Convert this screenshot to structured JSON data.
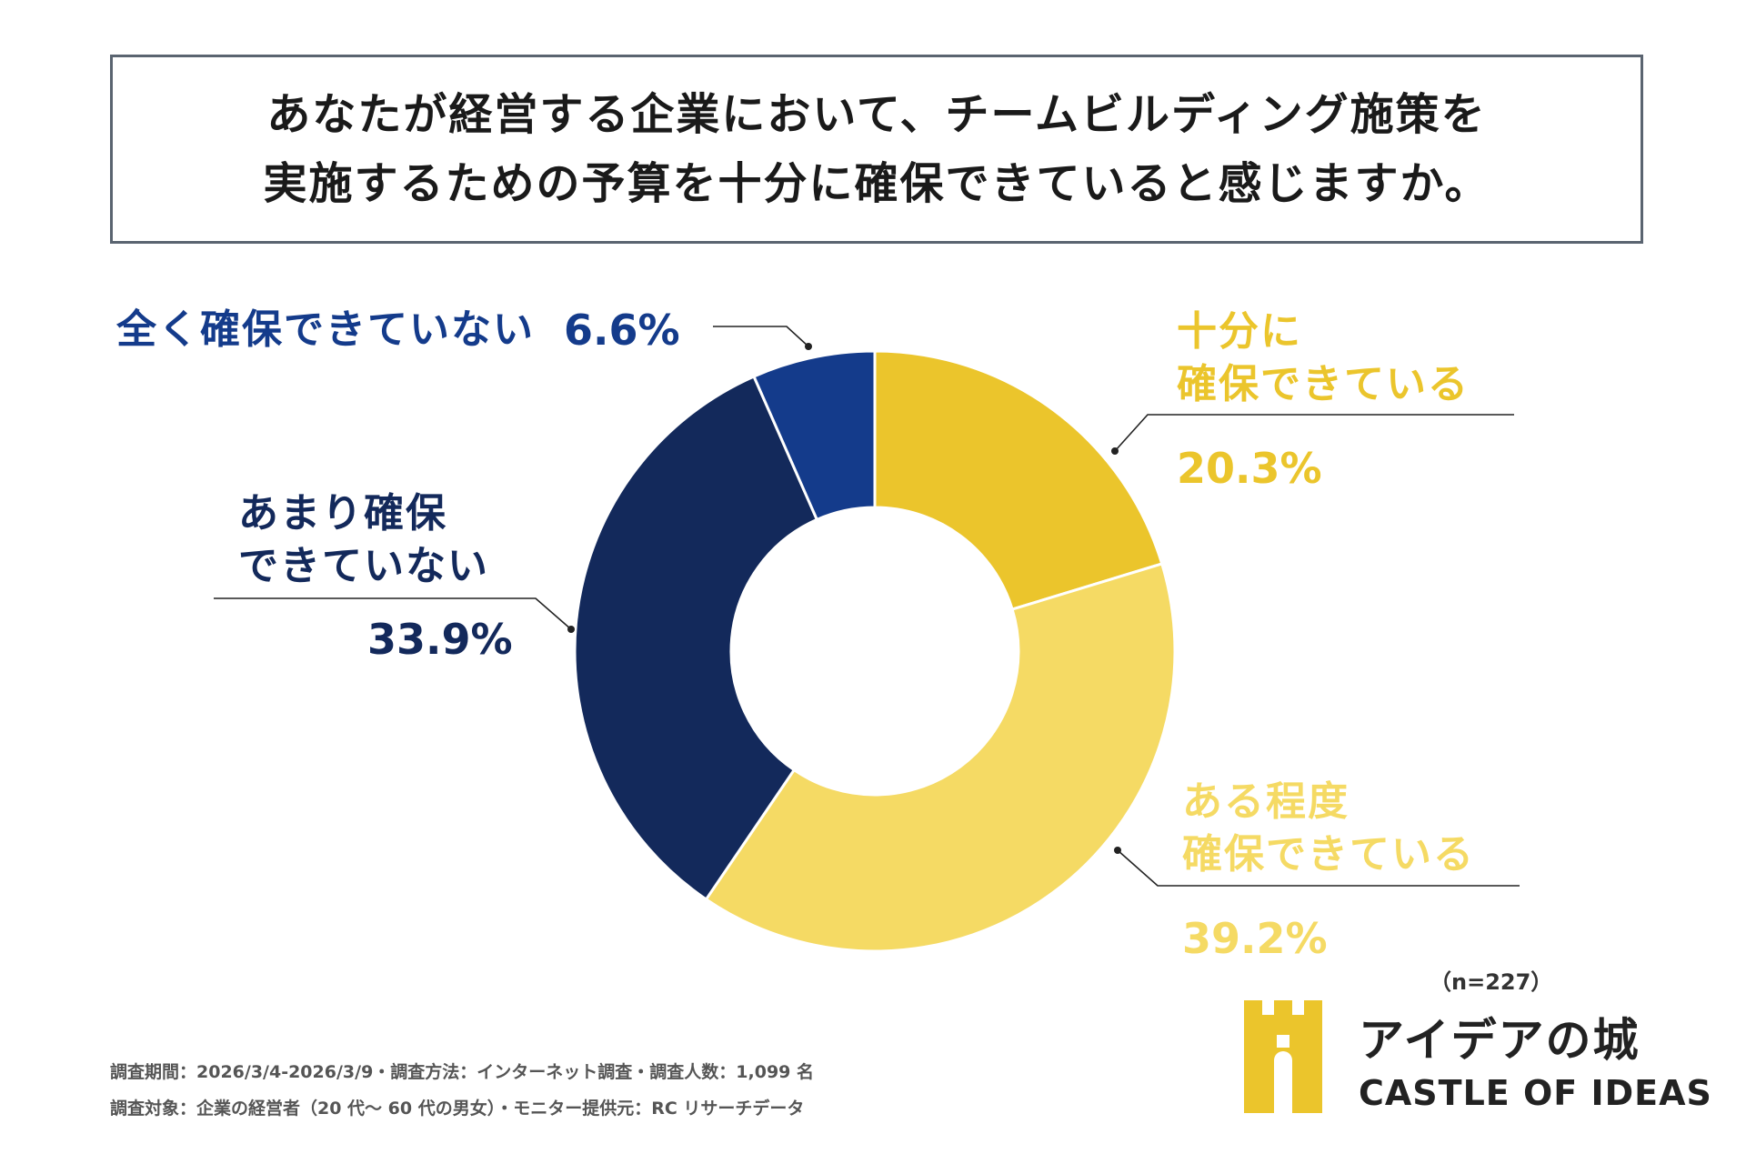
{
  "title": {
    "line1": "あなたが経営する企業において、チームビルディング施策を",
    "line2": "実施するための予算を十分に確保できていると感じますか。"
  },
  "chart_data": {
    "type": "pie",
    "variant": "donut",
    "title": "あなたが経営する企業において、チームビルディング施策を実施するための予算を十分に確保できていると感じますか。",
    "slices": [
      {
        "label": "十分に確保できている",
        "value": 20.3,
        "color": "#ebc52c"
      },
      {
        "label": "ある程度確保できている",
        "value": 39.2,
        "color": "#f5da64"
      },
      {
        "label": "あまり確保できていない",
        "value": 33.9,
        "color": "#13295b"
      },
      {
        "label": "全く確保できていない",
        "value": 6.6,
        "color": "#143b8b"
      }
    ],
    "value_labels": [
      "20.3%",
      "39.2%",
      "33.9%",
      "6.6%"
    ]
  },
  "labels": {
    "juubun_line1": "十分に",
    "juubun_line2": "確保できている",
    "juubun_pct": "20.3%",
    "arutei_line1": "ある程度",
    "arutei_line2": "確保できている",
    "arutei_pct": "39.2%",
    "amari_line1": "あまり確保",
    "amari_line2": "できていない",
    "amari_pct": "33.9%",
    "mattaku": "全く確保できていない",
    "mattaku_pct": "6.6%"
  },
  "sample_size": "（n=227）",
  "footer": {
    "line1": "調査期間：2026/3/4-2026/3/9・調査方法：インターネット調査・調査人数：1,099 名",
    "line2": "調査対象：企業の経営者（20 代～ 60 代の男女）・モニター提供元：RC リサーチデータ"
  },
  "logo": {
    "jp": "アイデアの城",
    "en": "CASTLE OF IDEAS",
    "color": "#ebc52c"
  }
}
